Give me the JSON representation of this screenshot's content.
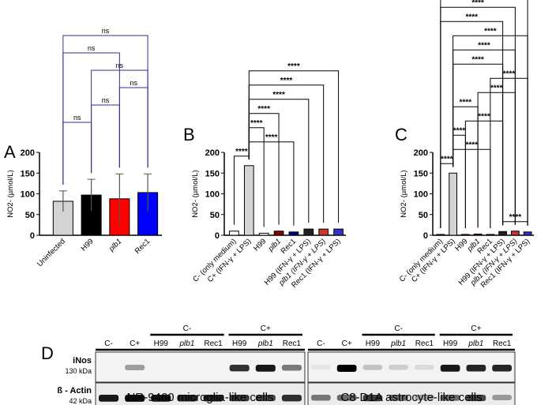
{
  "chart_data": [
    {
      "panel": "A",
      "type": "bar",
      "ylabel": "NO2- (µmol/L)",
      "ylim": [
        0,
        200
      ],
      "yticks": [
        "0",
        "50",
        "100",
        "150",
        "200"
      ],
      "categories": [
        "Uninfected",
        "H99",
        "plb1",
        "Rec1"
      ],
      "values": [
        82,
        97,
        88,
        103
      ],
      "errors": [
        25,
        38,
        60,
        45
      ],
      "colors": [
        "#d3d3d3",
        "#000000",
        "#ff0000",
        "#0000ff"
      ],
      "comparisons": [
        {
          "pair": [
            0,
            1
          ],
          "label": "ns"
        },
        {
          "pair": [
            1,
            2
          ],
          "label": "ns"
        },
        {
          "pair": [
            2,
            3
          ],
          "label": "ns"
        },
        {
          "pair": [
            1,
            3
          ],
          "label": "ns"
        },
        {
          "pair": [
            0,
            2
          ],
          "label": "ns"
        },
        {
          "pair": [
            0,
            3
          ],
          "label": "ns"
        }
      ]
    },
    {
      "panel": "B",
      "type": "bar",
      "ylabel": "NO2- (µmol/L)",
      "ylim": [
        0,
        200
      ],
      "yticks": [
        "0",
        "50",
        "100",
        "150",
        "200"
      ],
      "categories": [
        "C- (only medium)",
        "C+ (IFN-γ + LPS)",
        "H99",
        "plb1",
        "Rec1",
        "H99 (IFN-γ + LPS)",
        "plb1 (IFN-γ + LPS)",
        "Rec1 (IFN-γ + LPS)"
      ],
      "values": [
        10,
        168,
        5,
        10,
        8,
        15,
        15,
        15
      ],
      "colors": [
        "#ffffff",
        "#d3d3d3",
        "#ffffff",
        "#8b0000",
        "#00008b",
        "#222222",
        "#cc3333",
        "#3333cc"
      ],
      "comparisons": [
        {
          "pair": [
            0,
            1
          ],
          "label": "****"
        },
        {
          "pair": [
            1,
            4
          ],
          "label": "****"
        },
        {
          "pair": [
            1,
            2
          ],
          "label": "****"
        },
        {
          "pair": [
            1,
            3
          ],
          "label": "****"
        },
        {
          "pair": [
            1,
            5
          ],
          "label": "****"
        },
        {
          "pair": [
            1,
            6
          ],
          "label": "****"
        },
        {
          "pair": [
            1,
            7
          ],
          "label": "****"
        }
      ]
    },
    {
      "panel": "C",
      "type": "bar",
      "ylabel": "NO2- (µmol/L)",
      "ylim": [
        0,
        200
      ],
      "yticks": [
        "0",
        "50",
        "100",
        "150",
        "200"
      ],
      "categories": [
        "C- (only medium)",
        "C+ (IFN-γ + LPS)",
        "H99",
        "plb1",
        "Rec1",
        "H99 (IFN-γ + LPS)",
        "plb1 (IFN-γ + LPS)",
        "Rec1 (IFN-γ + LPS)"
      ],
      "values": [
        2,
        150,
        2,
        3,
        2,
        9,
        10,
        8
      ],
      "colors": [
        "#ffffff",
        "#d3d3d3",
        "#ffffff",
        "#8b0000",
        "#00008b",
        "#222222",
        "#cc3333",
        "#3333cc"
      ],
      "comparisons": [
        {
          "pair": [
            0,
            1
          ],
          "label": "****"
        },
        {
          "pair": [
            1,
            4
          ],
          "label": "****"
        },
        {
          "pair": [
            5,
            7
          ],
          "label": "****"
        },
        {
          "pair": [
            1,
            2
          ],
          "label": "****"
        },
        {
          "pair": [
            2,
            5
          ],
          "label": "****"
        },
        {
          "pair": [
            1,
            3
          ],
          "label": "****"
        },
        {
          "pair": [
            3,
            6
          ],
          "label": "****"
        },
        {
          "pair": [
            4,
            7
          ],
          "label": "****"
        },
        {
          "pair": [
            1,
            5
          ],
          "label": "****"
        },
        {
          "pair": [
            1,
            6
          ],
          "label": "****"
        },
        {
          "pair": [
            1,
            7
          ],
          "label": "****"
        },
        {
          "pair": [
            0,
            5
          ],
          "label": "****"
        },
        {
          "pair": [
            0,
            6
          ],
          "label": "****"
        },
        {
          "pair": [
            0,
            7
          ],
          "label": "****"
        }
      ]
    }
  ],
  "blot": {
    "panel": "D",
    "lanes": [
      "C-",
      "C+",
      "H99",
      "plb1",
      "Rec1",
      "H99",
      "plb1",
      "Rec1"
    ],
    "groups": [
      "C-",
      "C+"
    ],
    "rows": [
      {
        "name": "iNos",
        "kda": "130 kDa"
      },
      {
        "name": "ß - Actin",
        "kda": "42 kDa"
      }
    ],
    "cells": [
      "NR-9460 microglia-like cells",
      "C8-D1A astrocyte-like cells"
    ],
    "inos": [
      [
        0,
        0.35,
        0,
        0,
        0,
        0.8,
        0.9,
        0.5
      ],
      [
        0.05,
        1,
        0.2,
        0.15,
        0.1,
        0.9,
        0.85,
        0.85
      ]
    ],
    "actin": [
      [
        0.9,
        0.95,
        0.9,
        0.85,
        0.85,
        0.75,
        0.7,
        0.8
      ],
      [
        0.5,
        0.55,
        0.75,
        0.55,
        0.3,
        0.55,
        0.7,
        0.35
      ]
    ]
  }
}
